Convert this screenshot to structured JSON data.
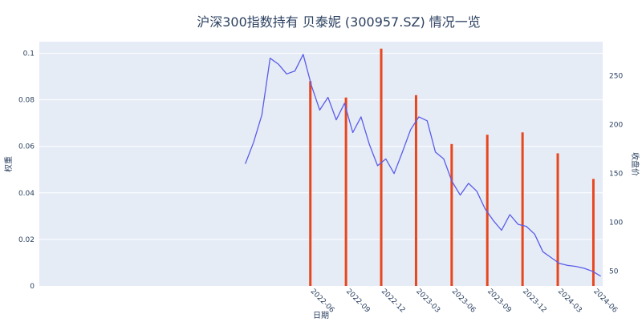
{
  "chart_data": {
    "title": "沪深300指数持有 贝泰妮 (300957.SZ) 情况一览",
    "xlabel": "日期",
    "y_left_label": "权重",
    "y_right_label": "收盘价",
    "y_left_range": [
      0,
      0.105
    ],
    "y_right_range": [
      35,
      285
    ],
    "y_left_ticks": [
      "0",
      "0.02",
      "0.04",
      "0.06",
      "0.08",
      "0.1"
    ],
    "y_right_ticks": [
      50,
      100,
      150,
      200,
      250
    ],
    "x_tick_labels": [
      "2022-06",
      "2022-09",
      "2022-12",
      "2023-03",
      "2023-06",
      "2023-09",
      "2023-12",
      "2024-03",
      "2024-06"
    ],
    "colors": {
      "bars": "#e8461e",
      "line": "#5a5ce8",
      "plot_bg": "#e5ecf6",
      "grid": "#ffffff"
    },
    "series": [
      {
        "type": "bar",
        "axis": "left",
        "x": [
          "2022-06",
          "2022-09",
          "2022-12",
          "2023-03",
          "2023-06",
          "2023-09",
          "2023-12",
          "2024-03",
          "2024-06"
        ],
        "values": [
          0.088,
          0.081,
          0.102,
          0.082,
          0.061,
          0.065,
          0.066,
          0.057,
          0.046
        ]
      },
      {
        "type": "line",
        "axis": "right",
        "x_start": "2021-12-15",
        "x_end": "2024-06-20",
        "values": [
          160,
          182,
          210,
          268,
          262,
          252,
          255,
          272,
          240,
          215,
          228,
          205,
          222,
          192,
          208,
          180,
          158,
          165,
          150,
          172,
          195,
          208,
          204,
          172,
          165,
          142,
          128,
          140,
          132,
          114,
          102,
          92,
          108,
          98,
          96,
          88,
          70,
          64,
          58,
          56,
          55,
          53,
          50,
          45
        ]
      }
    ]
  }
}
